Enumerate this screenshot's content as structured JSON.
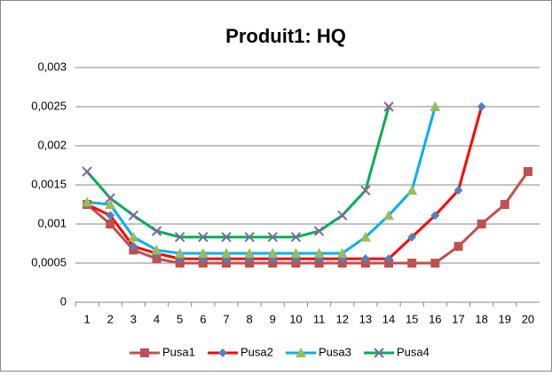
{
  "chart_data": {
    "type": "line",
    "title": "Produit1: HQ",
    "categories": [
      "1",
      "2",
      "3",
      "4",
      "5",
      "6",
      "7",
      "8",
      "9",
      "10",
      "11",
      "12",
      "13",
      "14",
      "15",
      "16",
      "17",
      "18",
      "19",
      "20"
    ],
    "series": [
      {
        "name": "Pusa1",
        "color": "#c0504d",
        "marker": "square",
        "marker_color": "#c0504d",
        "values": [
          0.00125,
          0.001,
          0.000667,
          0.000556,
          0.0005,
          0.0005,
          0.0005,
          0.0005,
          0.0005,
          0.0005,
          0.0005,
          0.0005,
          0.0005,
          0.0005,
          0.0005,
          0.0005,
          0.000714,
          0.001,
          0.00125,
          0.00167
        ]
      },
      {
        "name": "Pusa2",
        "color": "#ff0000",
        "marker": "diamond",
        "marker_color": "#4f81bd",
        "values": [
          0.00125,
          0.00111,
          0.000714,
          0.000625,
          0.000556,
          0.000556,
          0.000556,
          0.000556,
          0.000556,
          0.000556,
          0.000556,
          0.000556,
          0.000556,
          0.000556,
          0.000833,
          0.00111,
          0.00143,
          0.0025,
          null,
          null
        ]
      },
      {
        "name": "Pusa3",
        "color": "#00b0f0",
        "marker": "triangle",
        "marker_color": "#9bbb59",
        "values": [
          0.00128,
          0.00125,
          0.000833,
          0.000667,
          0.000625,
          0.000625,
          0.000625,
          0.000625,
          0.000625,
          0.000625,
          0.000625,
          0.000625,
          0.000833,
          0.00111,
          0.00143,
          0.0025,
          null,
          null,
          null,
          null
        ]
      },
      {
        "name": "Pusa4",
        "color": "#00b050",
        "marker": "x",
        "marker_color": "#8064a2",
        "values": [
          0.00167,
          0.00133,
          0.00111,
          0.000909,
          0.000833,
          0.000833,
          0.000833,
          0.000833,
          0.000833,
          0.000833,
          0.000909,
          0.00111,
          0.00143,
          0.0025,
          null,
          null,
          null,
          null,
          null,
          null
        ]
      }
    ],
    "ylim": [
      0,
      0.003
    ],
    "yticks": [
      0,
      {
        "value": 0.0005,
        "label": "0,0005"
      },
      {
        "value": 0.001,
        "label": "0,001"
      },
      {
        "value": 0.0015,
        "label": "0,0015"
      },
      {
        "value": 0.002,
        "label": "0,002"
      },
      {
        "value": 0.0025,
        "label": "0,0025"
      },
      {
        "value": 0.003,
        "label": "0,003"
      }
    ],
    "grid": true,
    "legend": "bottom"
  }
}
